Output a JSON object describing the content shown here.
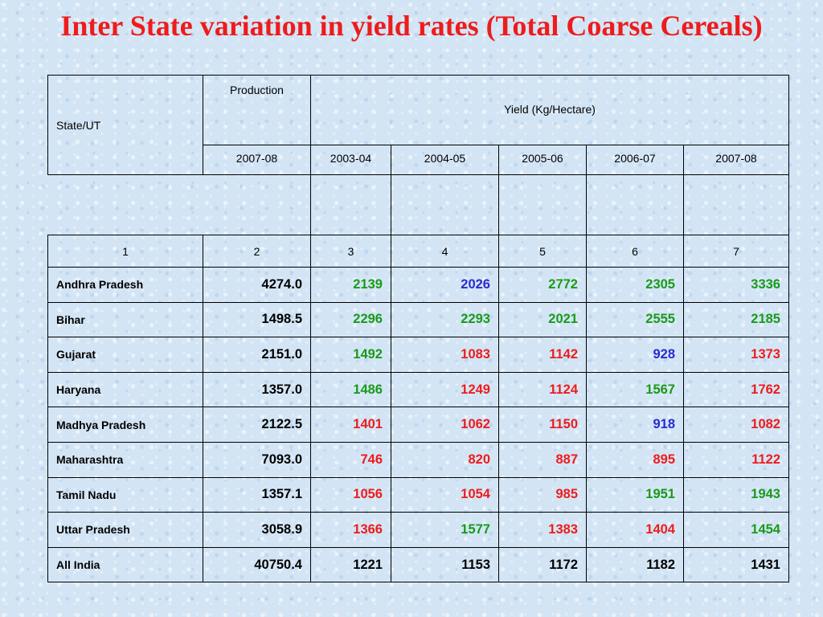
{
  "title": "Inter State variation in yield rates (Total Coarse Cereals)",
  "header": {
    "state_ut": "State/UT",
    "production": "Production",
    "yield": "Yield (Kg/Hectare)",
    "years": [
      "2007-08",
      "2003-04",
      "2004-05",
      "2005-06",
      "2006-07",
      "2007-08"
    ],
    "column_numbers": [
      "1",
      "2",
      "3",
      "4",
      "5",
      "6",
      "7"
    ]
  },
  "colors": {
    "green": "#1a9a1a",
    "red": "#ee1c1c",
    "blue": "#2a2ad0",
    "black": "#000000",
    "title": "#ee1c1c"
  },
  "rows": [
    {
      "state": "Andhra Pradesh",
      "production": "4274.0",
      "yields": [
        {
          "v": "2139",
          "c": "green"
        },
        {
          "v": "2026",
          "c": "blue"
        },
        {
          "v": "2772",
          "c": "green"
        },
        {
          "v": "2305",
          "c": "green"
        },
        {
          "v": "3336",
          "c": "green"
        }
      ]
    },
    {
      "state": "Bihar",
      "production": "1498.5",
      "yields": [
        {
          "v": "2296",
          "c": "green"
        },
        {
          "v": "2293",
          "c": "green"
        },
        {
          "v": "2021",
          "c": "green"
        },
        {
          "v": "2555",
          "c": "green"
        },
        {
          "v": "2185",
          "c": "green"
        }
      ]
    },
    {
      "state": "Gujarat",
      "production": "2151.0",
      "yields": [
        {
          "v": "1492",
          "c": "green"
        },
        {
          "v": "1083",
          "c": "red"
        },
        {
          "v": "1142",
          "c": "red"
        },
        {
          "v": "928",
          "c": "blue"
        },
        {
          "v": "1373",
          "c": "red"
        }
      ]
    },
    {
      "state": "Haryana",
      "production": "1357.0",
      "yields": [
        {
          "v": "1486",
          "c": "green"
        },
        {
          "v": "1249",
          "c": "red"
        },
        {
          "v": "1124",
          "c": "red"
        },
        {
          "v": "1567",
          "c": "green"
        },
        {
          "v": "1762",
          "c": "red"
        }
      ]
    },
    {
      "state": "Madhya Pradesh",
      "production": "2122.5",
      "yields": [
        {
          "v": "1401",
          "c": "red"
        },
        {
          "v": "1062",
          "c": "red"
        },
        {
          "v": "1150",
          "c": "red"
        },
        {
          "v": "918",
          "c": "blue"
        },
        {
          "v": "1082",
          "c": "red"
        }
      ]
    },
    {
      "state": "Maharashtra",
      "production": "7093.0",
      "yields": [
        {
          "v": "746",
          "c": "red"
        },
        {
          "v": "820",
          "c": "red"
        },
        {
          "v": "887",
          "c": "red"
        },
        {
          "v": "895",
          "c": "red"
        },
        {
          "v": "1122",
          "c": "red"
        }
      ]
    },
    {
      "state": "Tamil Nadu",
      "production": "1357.1",
      "yields": [
        {
          "v": "1056",
          "c": "red"
        },
        {
          "v": "1054",
          "c": "red"
        },
        {
          "v": "985",
          "c": "red"
        },
        {
          "v": "1951",
          "c": "green"
        },
        {
          "v": "1943",
          "c": "green"
        }
      ]
    },
    {
      "state": "Uttar Pradesh",
      "production": "3058.9",
      "yields": [
        {
          "v": "1366",
          "c": "red"
        },
        {
          "v": "1577",
          "c": "green"
        },
        {
          "v": "1383",
          "c": "red"
        },
        {
          "v": "1404",
          "c": "red"
        },
        {
          "v": "1454",
          "c": "green"
        }
      ]
    },
    {
      "state": "All India",
      "production": "40750.4",
      "yields": [
        {
          "v": "1221",
          "c": "black"
        },
        {
          "v": "1153",
          "c": "black"
        },
        {
          "v": "1172",
          "c": "black"
        },
        {
          "v": "1182",
          "c": "black"
        },
        {
          "v": "1431",
          "c": "black"
        }
      ]
    }
  ]
}
